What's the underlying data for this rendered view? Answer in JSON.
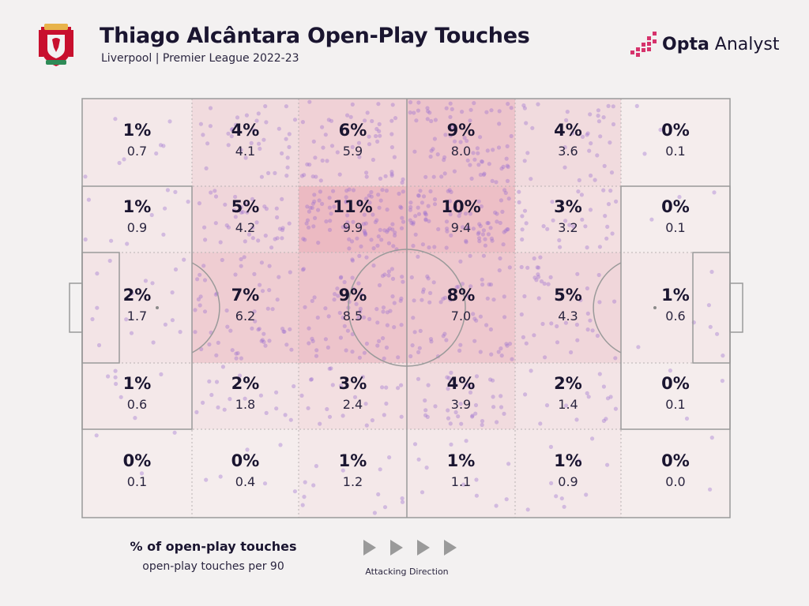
{
  "header": {
    "title": "Thiago Alcântara Open-Play Touches",
    "subtitle": "Liverpool | Premier League 2022-23",
    "brand_bold": "Opta",
    "brand_light": " Analyst"
  },
  "colors": {
    "heat_base": "#d9546a",
    "dots": "#9b6fd0",
    "lines": "#9a9a9a",
    "pitch_bg": "#f6f2f2"
  },
  "chart_data": {
    "type": "heatmap",
    "title": "Thiago Alcântara Open-Play Touches",
    "subtitle": "Liverpool | Premier League 2022-23",
    "columns": 6,
    "rows": 5,
    "attacking_direction": "left-to-right",
    "metric_primary": "% of open-play touches",
    "metric_secondary": "open-play touches per 90",
    "zones": [
      [
        {
          "pct": "1%",
          "val": "0.7"
        },
        {
          "pct": "4%",
          "val": "4.1"
        },
        {
          "pct": "6%",
          "val": "5.9"
        },
        {
          "pct": "9%",
          "val": "8.0"
        },
        {
          "pct": "4%",
          "val": "3.6"
        },
        {
          "pct": "0%",
          "val": "0.1"
        }
      ],
      [
        {
          "pct": "1%",
          "val": "0.9"
        },
        {
          "pct": "5%",
          "val": "4.2"
        },
        {
          "pct": "11%",
          "val": "9.9"
        },
        {
          "pct": "10%",
          "val": "9.4"
        },
        {
          "pct": "3%",
          "val": "3.2"
        },
        {
          "pct": "0%",
          "val": "0.1"
        }
      ],
      [
        {
          "pct": "2%",
          "val": "1.7"
        },
        {
          "pct": "7%",
          "val": "6.2"
        },
        {
          "pct": "9%",
          "val": "8.5"
        },
        {
          "pct": "8%",
          "val": "7.0"
        },
        {
          "pct": "5%",
          "val": "4.3"
        },
        {
          "pct": "1%",
          "val": "0.6"
        }
      ],
      [
        {
          "pct": "1%",
          "val": "0.6"
        },
        {
          "pct": "2%",
          "val": "1.8"
        },
        {
          "pct": "3%",
          "val": "2.4"
        },
        {
          "pct": "4%",
          "val": "3.9"
        },
        {
          "pct": "2%",
          "val": "1.4"
        },
        {
          "pct": "0%",
          "val": "0.1"
        }
      ],
      [
        {
          "pct": "0%",
          "val": "0.1"
        },
        {
          "pct": "0%",
          "val": "0.4"
        },
        {
          "pct": "1%",
          "val": "1.2"
        },
        {
          "pct": "1%",
          "val": "1.1"
        },
        {
          "pct": "1%",
          "val": "0.9"
        },
        {
          "pct": "0%",
          "val": "0.0"
        }
      ]
    ]
  },
  "legend": {
    "primary_label": "% of open-play touches",
    "secondary_label": "open-play touches per 90",
    "direction_label": "Attacking Direction"
  }
}
